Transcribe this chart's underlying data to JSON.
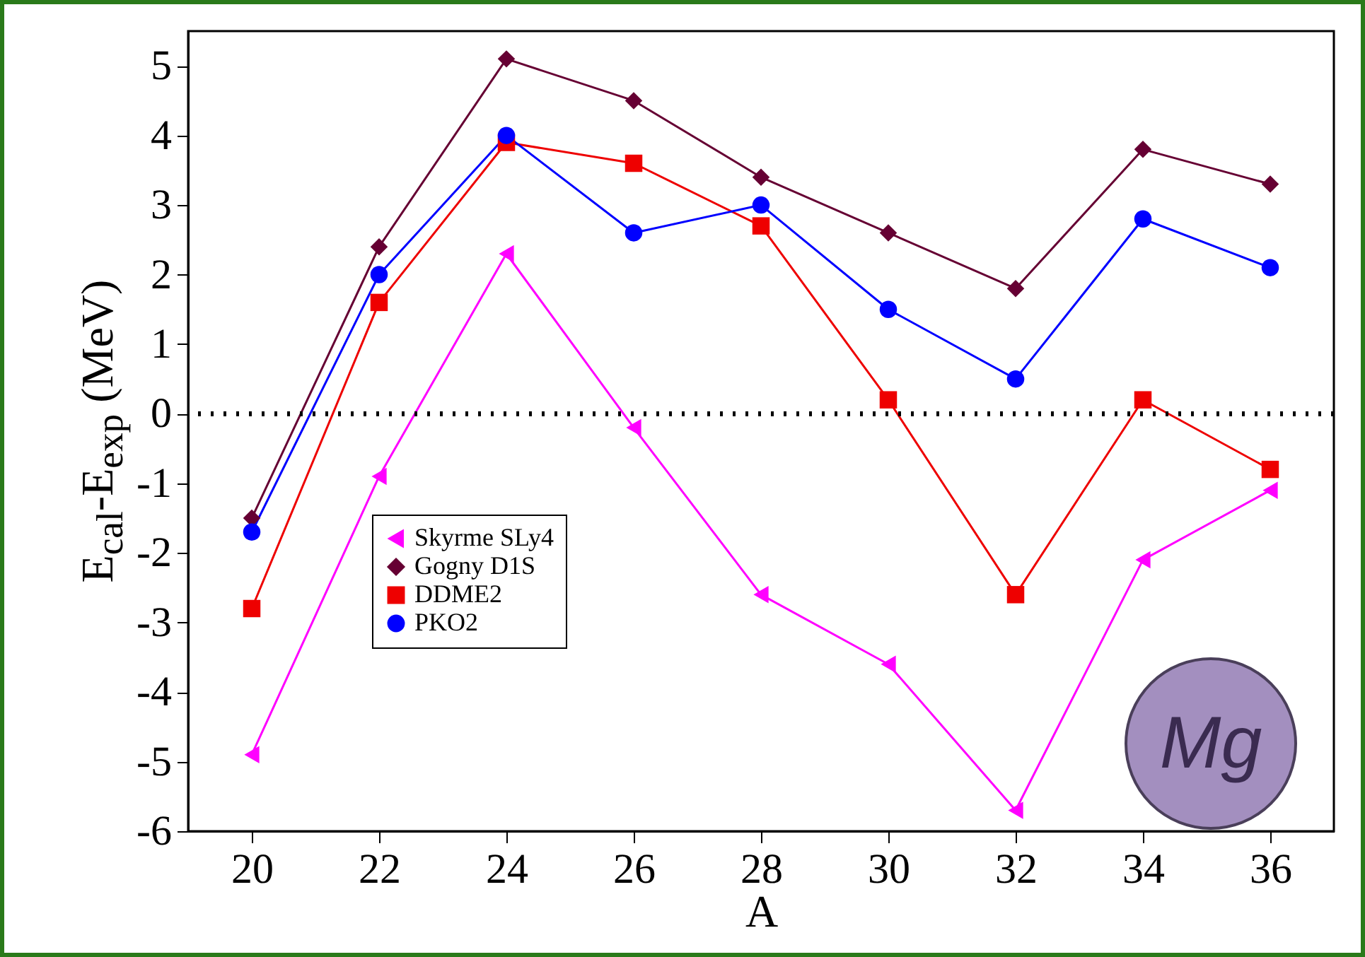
{
  "chart_data": {
    "type": "line",
    "xlabel": "A",
    "ylabel": "E$_{cal}$-E$_{exp}$ (MeV)",
    "x": [
      20,
      22,
      24,
      26,
      28,
      30,
      32,
      34,
      36
    ],
    "xlim": [
      19,
      37
    ],
    "xticks": [
      20,
      22,
      24,
      26,
      28,
      30,
      32,
      34,
      36
    ],
    "ylim": [
      -6,
      5.5
    ],
    "yticks": [
      -6,
      -5,
      -4,
      -3,
      -2,
      -1,
      0,
      1,
      2,
      3,
      4,
      5
    ],
    "grid": false,
    "legend": "bottom left",
    "ref_lines": [
      {
        "axis": "y",
        "value": 0,
        "color": "#000000",
        "line_style": "dotted"
      }
    ],
    "annotations": [
      "Mg"
    ],
    "series": [
      {
        "name": "Skyrme SLy4",
        "color": "#ff00ff",
        "marker": "triangle",
        "values": [
          -4.9,
          -0.9,
          2.3,
          -0.2,
          -2.6,
          -3.6,
          -5.7,
          -2.1,
          -1.1
        ]
      },
      {
        "name": "Gogny D1S",
        "color": "#660033",
        "marker": "diamond",
        "values": [
          -1.5,
          2.4,
          5.1,
          4.5,
          3.4,
          2.6,
          1.8,
          3.8,
          3.3
        ]
      },
      {
        "name": "DDME2",
        "color": "#ee0000",
        "marker": "square",
        "values": [
          -2.8,
          1.6,
          3.9,
          3.6,
          2.7,
          0.2,
          -2.6,
          0.2,
          -0.8
        ]
      },
      {
        "name": "PKO2",
        "color": "#0000ff",
        "marker": "circle",
        "values": [
          -1.7,
          2.0,
          4.0,
          2.6,
          3.0,
          1.5,
          0.5,
          2.8,
          2.1
        ]
      }
    ]
  }
}
